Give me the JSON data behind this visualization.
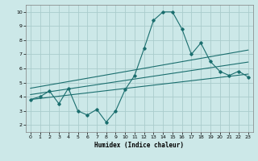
{
  "xlabel": "Humidex (Indice chaleur)",
  "ylabel": "",
  "bg_color": "#cce8e8",
  "grid_color": "#aacccc",
  "line_color": "#1a6e6e",
  "xlim": [
    -0.5,
    23.5
  ],
  "ylim": [
    1.5,
    10.5
  ],
  "yticks": [
    2,
    3,
    4,
    5,
    6,
    7,
    8,
    9,
    10
  ],
  "xticks": [
    0,
    1,
    2,
    3,
    4,
    5,
    6,
    7,
    8,
    9,
    10,
    11,
    12,
    13,
    14,
    15,
    16,
    17,
    18,
    19,
    20,
    21,
    22,
    23
  ],
  "main_x": [
    0,
    1,
    2,
    3,
    4,
    5,
    6,
    7,
    8,
    9,
    10,
    11,
    12,
    13,
    14,
    15,
    16,
    17,
    18,
    19,
    20,
    21,
    22,
    23
  ],
  "main_y": [
    3.8,
    4.0,
    4.4,
    3.5,
    4.6,
    3.0,
    2.7,
    3.1,
    2.2,
    3.0,
    4.5,
    5.5,
    7.4,
    9.4,
    10.0,
    10.0,
    8.8,
    7.0,
    7.8,
    6.5,
    5.8,
    5.5,
    5.8,
    5.4
  ],
  "upper_line_x": [
    0,
    23
  ],
  "upper_line_y": [
    4.6,
    7.3
  ],
  "lower_line_x": [
    0,
    23
  ],
  "lower_line_y": [
    3.8,
    5.6
  ],
  "mid_line_x": [
    0,
    23
  ],
  "mid_line_y": [
    4.15,
    6.45
  ]
}
